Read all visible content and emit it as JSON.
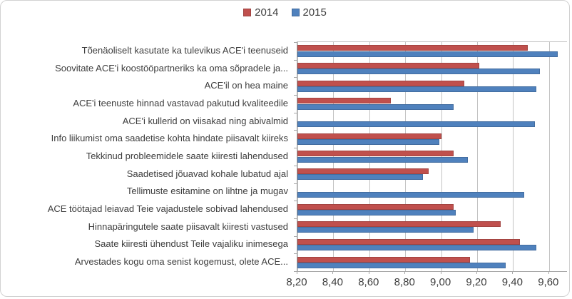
{
  "chart_data": {
    "type": "bar",
    "orientation": "horizontal",
    "title": "",
    "xlabel": "",
    "ylabel": "",
    "categories": [
      "Tõenäoliselt kasutate ka tulevikus ACE'i teenuseid",
      "Soovitate ACE'i koostööpartneriks ka oma sõpradele ja...",
      "ACE'il on hea maine",
      "ACE'i teenuste hinnad vastavad pakutud kvaliteedile",
      "ACE'i kullerid on viisakad ning abivalmid",
      "Info liikumist oma saadetise kohta hindate piisavalt kiireks",
      "Tekkinud probleemidele saate kiiresti lahendused",
      "Saadetised jõuavad kohale lubatud ajal",
      "Tellimuste esitamine on lihtne ja mugav",
      "ACE töötajad leiavad Teie vajadustele sobivad lahendused",
      "Hinnapäringutele saate piisavalt kiiresti vastused",
      "Saate kiiresti ühendust Teile vajaliku inimesega",
      "Arvestades kogu oma senist kogemust, olete ACE..."
    ],
    "series": [
      {
        "name": "2014",
        "color": "#C0504D",
        "values": [
          9.48,
          9.21,
          9.13,
          8.72,
          null,
          9.0,
          9.07,
          8.93,
          null,
          9.07,
          9.33,
          9.44,
          9.16
        ]
      },
      {
        "name": "2015",
        "color": "#4F81BD",
        "values": [
          9.65,
          9.55,
          9.53,
          9.07,
          9.52,
          8.99,
          9.15,
          8.9,
          9.46,
          9.08,
          9.18,
          9.53,
          9.36
        ]
      }
    ],
    "xlim": [
      8.2,
      9.7
    ],
    "x_ticks": [
      {
        "label": "8,20",
        "value": 8.2
      },
      {
        "label": "8,40",
        "value": 8.4
      },
      {
        "label": "8,60",
        "value": 8.6
      },
      {
        "label": "8,80",
        "value": 8.8
      },
      {
        "label": "9,00",
        "value": 9.0
      },
      {
        "label": "9,20",
        "value": 9.2
      },
      {
        "label": "9,40",
        "value": 9.4
      },
      {
        "label": "9,60",
        "value": 9.6
      }
    ],
    "grid": true,
    "legend_position": "top"
  },
  "colors": {
    "grid": "#c3c3c3",
    "axis": "#a6a6a6",
    "text": "#3d3d3d",
    "frame_border": "#d2d2d2",
    "background": "#ffffff"
  }
}
